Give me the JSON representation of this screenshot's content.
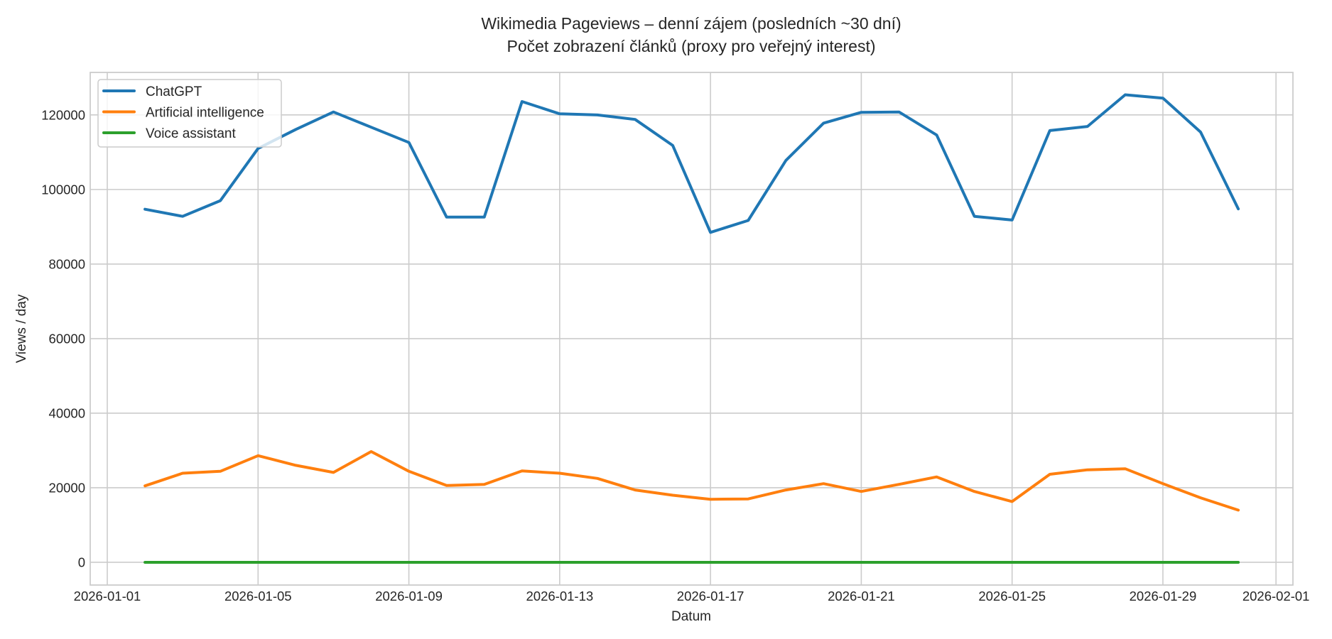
{
  "chart_data": {
    "type": "line",
    "title": "Wikimedia Pageviews – denní zájem (posledních ~30 dní)",
    "subtitle": "Počet zobrazení článků (proxy pro veřejný interest)",
    "xlabel": "Datum",
    "ylabel": "Views / day",
    "x": [
      "2026-01-02",
      "2026-01-03",
      "2026-01-04",
      "2026-01-05",
      "2026-01-06",
      "2026-01-07",
      "2026-01-08",
      "2026-01-09",
      "2026-01-10",
      "2026-01-11",
      "2026-01-12",
      "2026-01-13",
      "2026-01-14",
      "2026-01-15",
      "2026-01-16",
      "2026-01-17",
      "2026-01-18",
      "2026-01-19",
      "2026-01-20",
      "2026-01-21",
      "2026-01-22",
      "2026-01-23",
      "2026-01-24",
      "2026-01-25",
      "2026-01-26",
      "2026-01-27",
      "2026-01-28",
      "2026-01-29",
      "2026-01-30",
      "2026-01-31"
    ],
    "series": [
      {
        "name": "ChatGPT",
        "color": "#1f77b4",
        "values": [
          94700,
          92800,
          97000,
          111000,
          116100,
          120800,
          116700,
          112600,
          92600,
          92600,
          123600,
          120300,
          120000,
          118800,
          111800,
          88500,
          91700,
          107800,
          117800,
          120700,
          120800,
          114600,
          92800,
          91800,
          115800,
          116900,
          125400,
          124500,
          115400,
          94800
        ]
      },
      {
        "name": "Artificial intelligence",
        "color": "#ff7f0e",
        "values": [
          20500,
          23900,
          24400,
          28600,
          26000,
          24100,
          29700,
          24400,
          20600,
          20900,
          24500,
          23900,
          22500,
          19400,
          18000,
          16900,
          17000,
          19400,
          21100,
          19000,
          20900,
          22900,
          19000,
          16300,
          23600,
          24800,
          25100,
          21100,
          17300,
          14000
        ]
      },
      {
        "name": "Voice assistant",
        "color": "#2ca02c",
        "values": [
          0,
          0,
          0,
          0,
          0,
          0,
          0,
          0,
          0,
          0,
          0,
          0,
          0,
          0,
          0,
          0,
          0,
          0,
          0,
          0,
          0,
          0,
          0,
          0,
          0,
          0,
          0,
          0,
          0,
          0
        ]
      }
    ],
    "xticks": [
      "2026-01-01",
      "2026-01-05",
      "2026-01-09",
      "2026-01-13",
      "2026-01-17",
      "2026-01-21",
      "2026-01-25",
      "2026-01-29",
      "2026-02-01"
    ],
    "yticks": [
      0,
      20000,
      40000,
      60000,
      80000,
      100000,
      120000
    ],
    "xlim": [
      "2026-01-01T13:00",
      "2026-02-02T10:00"
    ],
    "ylim": [
      -6100,
      131400
    ],
    "grid": true,
    "legend_position": "upper left"
  }
}
